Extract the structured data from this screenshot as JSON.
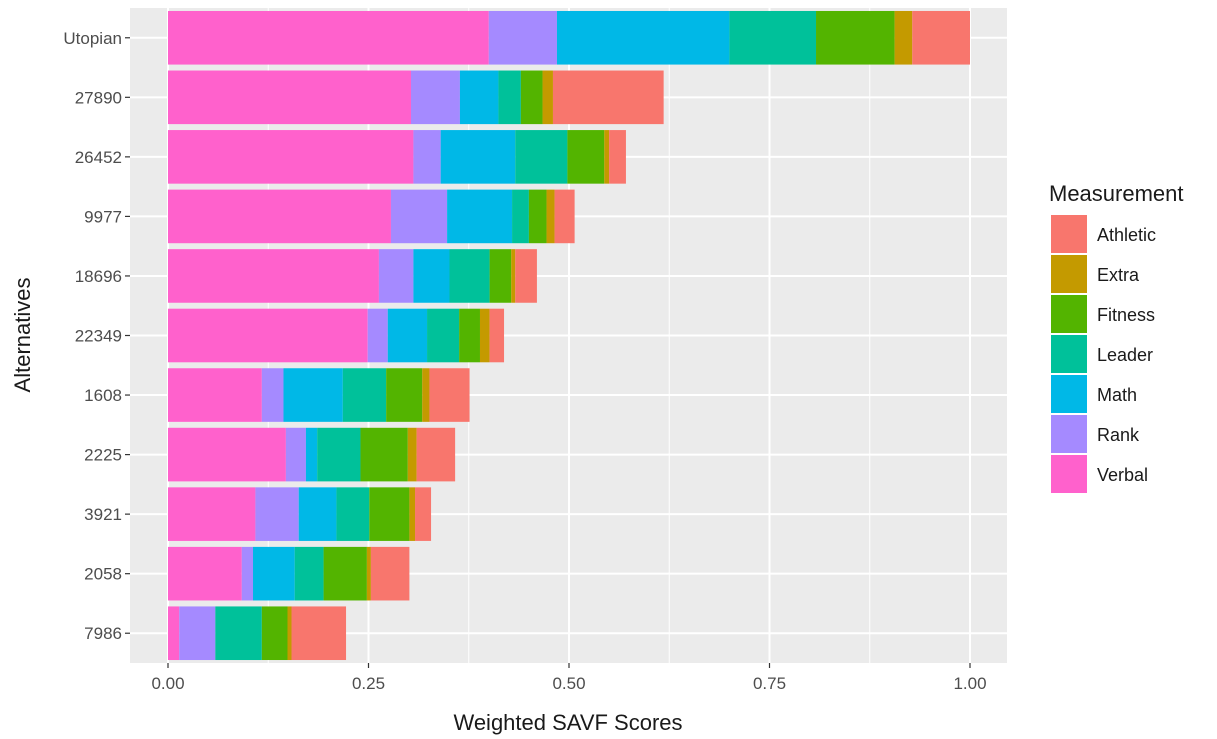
{
  "chart_data": {
    "type": "bar",
    "orientation": "horizontal",
    "stacked": true,
    "xlabel": "Weighted SAVF Scores",
    "ylabel": "Alternatives",
    "xlim": [
      -0.04,
      1.04
    ],
    "xticks": [
      0,
      0.25,
      0.5,
      0.75,
      1.0
    ],
    "xtick_labels": [
      "0.00",
      "0.25",
      "0.50",
      "0.75",
      "1.00"
    ],
    "grid": true,
    "legend_position": "right",
    "legend_title": "Measurement",
    "categories": [
      "Utopian",
      "27890",
      "26452",
      "9977",
      "18696",
      "22349",
      "1608",
      "2225",
      "3921",
      "2058",
      "7986"
    ],
    "series": [
      {
        "name": "Verbal",
        "color": "#FF61CC",
        "values": [
          0.4,
          0.303,
          0.306,
          0.278,
          0.263,
          0.249,
          0.117,
          0.147,
          0.109,
          0.092,
          0.014
        ]
      },
      {
        "name": "Rank",
        "color": "#A58AFF",
        "values": [
          0.085,
          0.061,
          0.034,
          0.07,
          0.043,
          0.025,
          0.027,
          0.025,
          0.054,
          0.014,
          0.045
        ]
      },
      {
        "name": "Math",
        "color": "#00B8E7",
        "values": [
          0.215,
          0.048,
          0.093,
          0.081,
          0.045,
          0.049,
          0.074,
          0.014,
          0.047,
          0.052,
          0.0
        ]
      },
      {
        "name": "Leader",
        "color": "#00C19A",
        "values": [
          0.108,
          0.028,
          0.065,
          0.021,
          0.05,
          0.04,
          0.054,
          0.054,
          0.041,
          0.036,
          0.058
        ]
      },
      {
        "name": "Fitness",
        "color": "#53B400",
        "values": [
          0.098,
          0.027,
          0.046,
          0.022,
          0.027,
          0.026,
          0.045,
          0.059,
          0.05,
          0.054,
          0.032
        ]
      },
      {
        "name": "Extra",
        "color": "#C49A00",
        "values": [
          0.022,
          0.013,
          0.006,
          0.01,
          0.005,
          0.012,
          0.009,
          0.011,
          0.007,
          0.005,
          0.005
        ]
      },
      {
        "name": "Athletic",
        "color": "#F8766D",
        "values": [
          0.072,
          0.138,
          0.021,
          0.025,
          0.027,
          0.018,
          0.05,
          0.048,
          0.02,
          0.048,
          0.068
        ]
      }
    ],
    "legend_order": [
      "Athletic",
      "Extra",
      "Fitness",
      "Leader",
      "Math",
      "Rank",
      "Verbal"
    ],
    "panel_background": "#EBEBEB",
    "grid_color": "#FFFFFF"
  }
}
